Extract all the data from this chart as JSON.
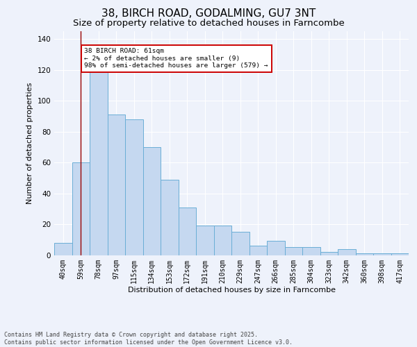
{
  "title": "38, BIRCH ROAD, GODALMING, GU7 3NT",
  "subtitle": "Size of property relative to detached houses in Farncombe",
  "xlabel": "Distribution of detached houses by size in Farncombe",
  "ylabel": "Number of detached properties",
  "footer_line1": "Contains HM Land Registry data © Crown copyright and database right 2025.",
  "footer_line2": "Contains public sector information licensed under the Open Government Licence v3.0.",
  "categories": [
    "40sqm",
    "59sqm",
    "78sqm",
    "97sqm",
    "115sqm",
    "134sqm",
    "153sqm",
    "172sqm",
    "191sqm",
    "210sqm",
    "229sqm",
    "247sqm",
    "266sqm",
    "285sqm",
    "304sqm",
    "323sqm",
    "342sqm",
    "360sqm",
    "398sqm",
    "417sqm"
  ],
  "bar_heights": [
    8,
    60,
    119,
    91,
    88,
    70,
    49,
    31,
    19,
    19,
    15,
    6,
    9,
    5,
    5,
    2,
    4,
    1,
    1,
    1
  ],
  "bar_color": "#c5d8f0",
  "bar_edge_color": "#6aaed6",
  "vline_color": "#990000",
  "annotation_title": "38 BIRCH ROAD: 61sqm",
  "annotation_line1": "← 2% of detached houses are smaller (9)",
  "annotation_line2": "98% of semi-detached houses are larger (579) →",
  "annotation_box_facecolor": "#ffffff",
  "annotation_border_color": "#cc0000",
  "bg_color": "#eef2fb",
  "ylim": [
    0,
    145
  ],
  "yticks": [
    0,
    20,
    40,
    60,
    80,
    100,
    120,
    140
  ],
  "title_fontsize": 11,
  "subtitle_fontsize": 9.5,
  "axis_label_fontsize": 8,
  "tick_fontsize": 7,
  "footer_fontsize": 6
}
